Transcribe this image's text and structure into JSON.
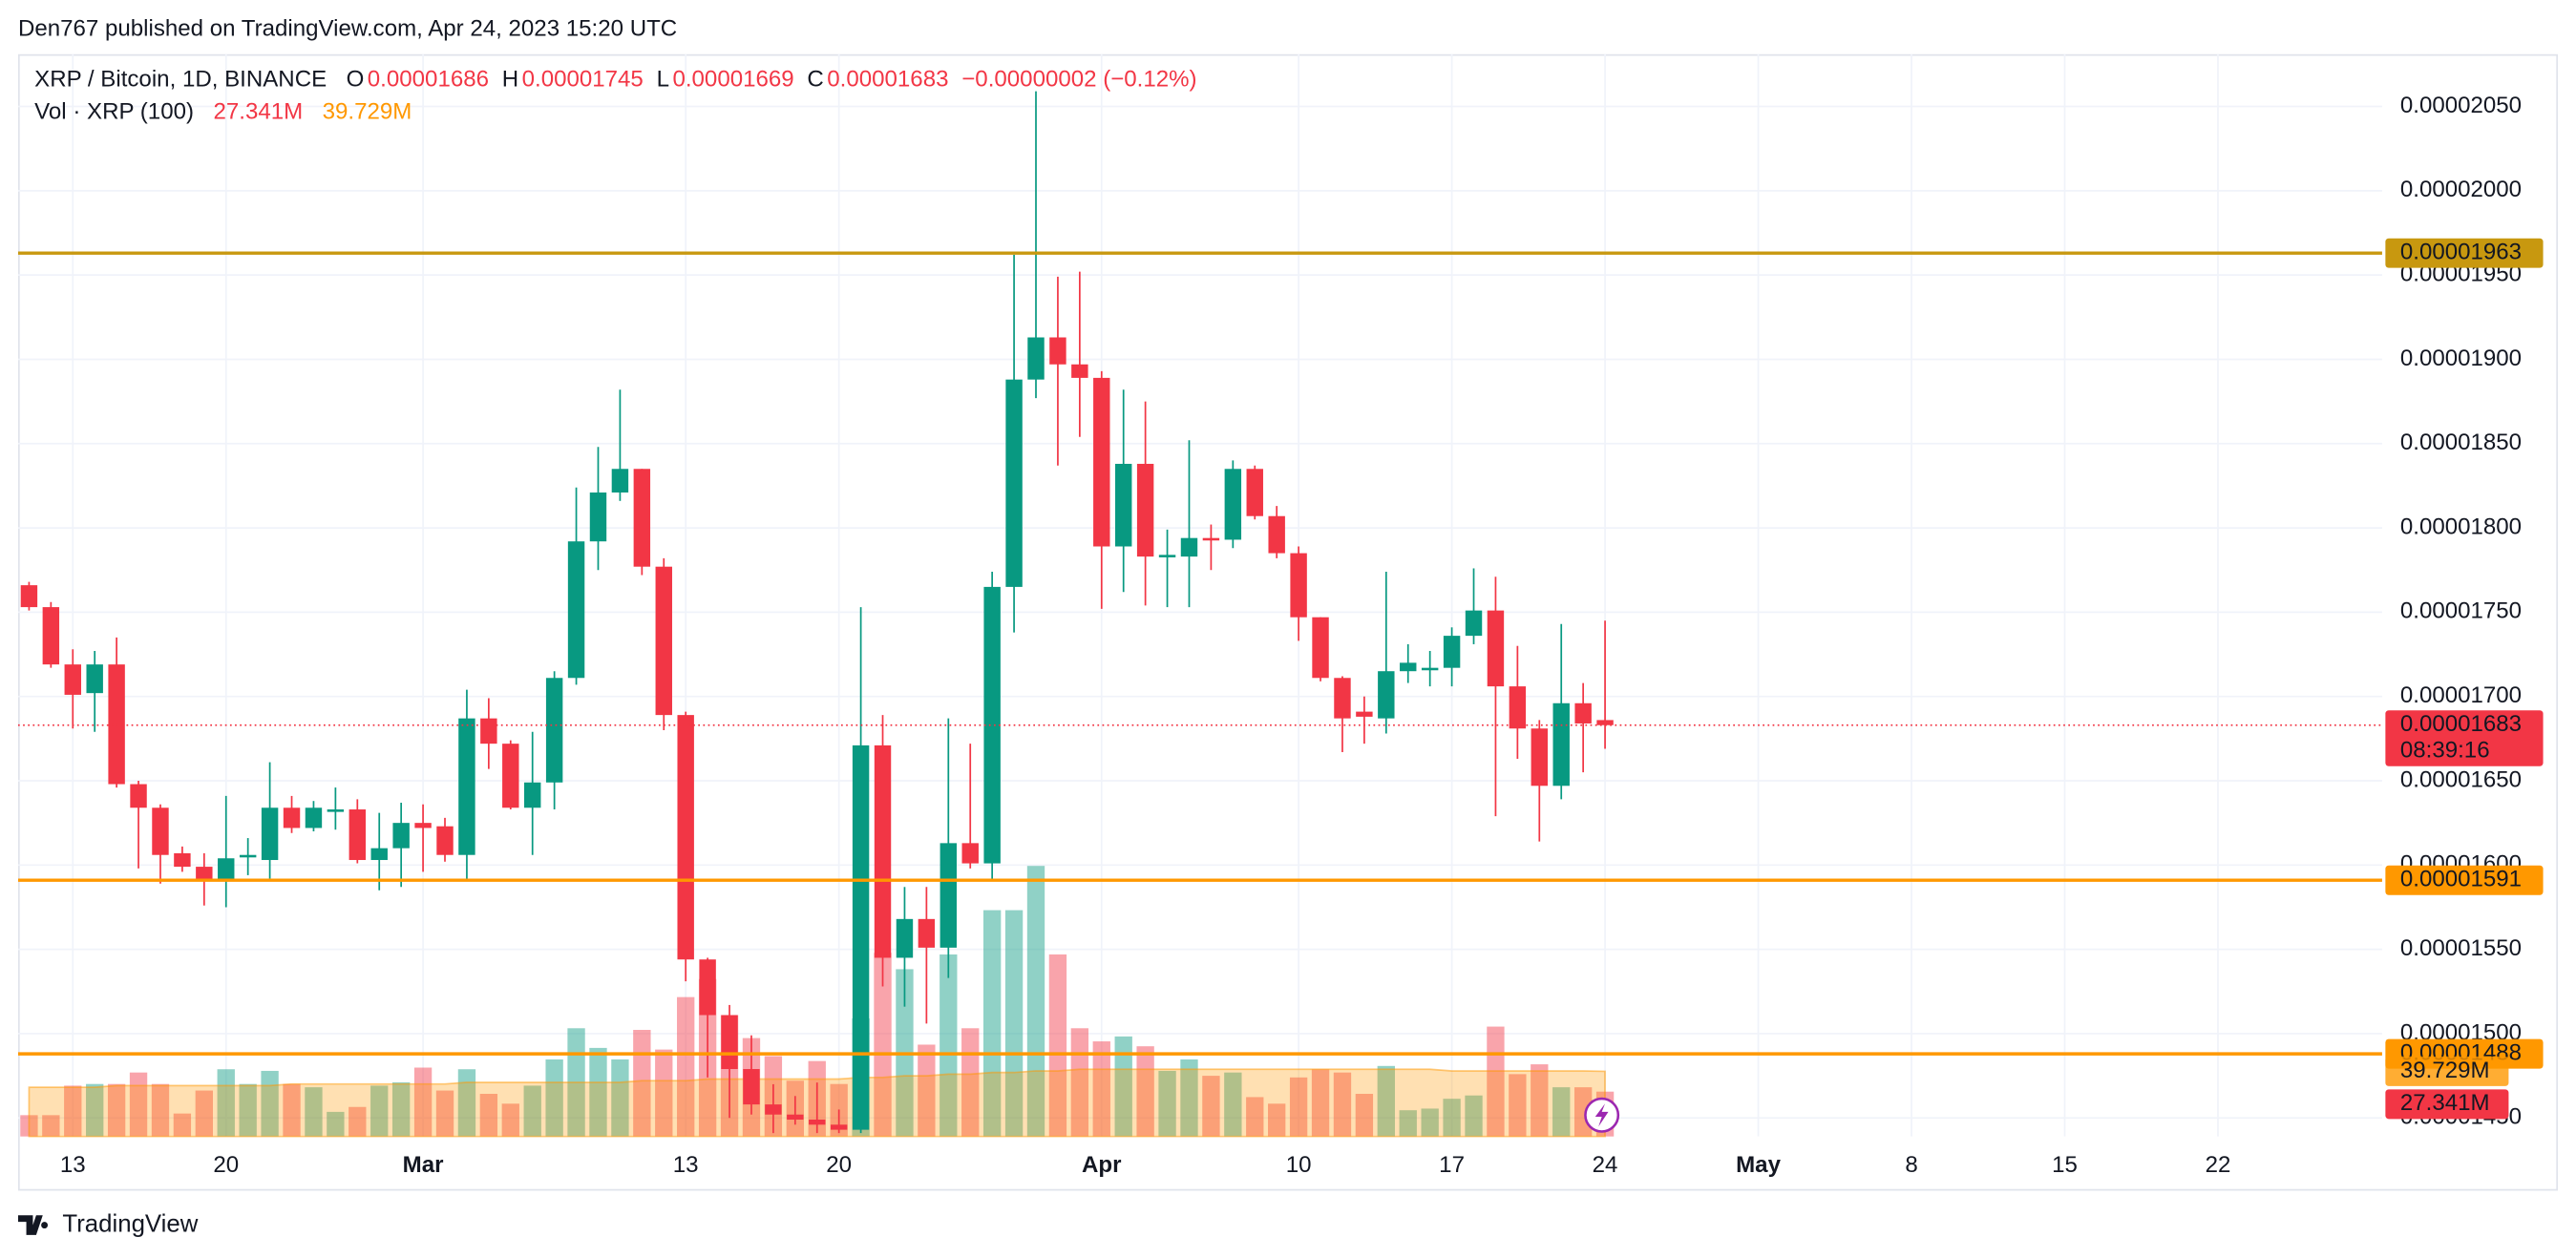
{
  "chart_data": {
    "type": "candlestick",
    "title": "Den767 published on TradingView.com, Apr 24, 2023 15:20 UTC",
    "brand": "TradingView",
    "ohlc_letters": [
      "O",
      "H",
      "L",
      "C"
    ],
    "change": "−0.00000002 (−0.12%)",
    "countdown": "08:39:16",
    "up_color": "#089981",
    "down_color": "#f23645",
    "grid": true,
    "categories": [
      null,
      null,
      "13",
      null,
      null,
      null,
      null,
      null,
      null,
      "20",
      null,
      null,
      null,
      null,
      null,
      null,
      null,
      null,
      "Mar",
      null,
      null,
      null,
      null,
      null,
      null,
      null,
      null,
      null,
      null,
      null,
      "13",
      null,
      null,
      null,
      null,
      null,
      null,
      "20",
      null,
      null,
      null,
      null,
      null,
      null,
      null,
      null,
      null,
      null,
      null,
      "Apr",
      null,
      null,
      null,
      null,
      null,
      null,
      null,
      null,
      "10",
      null,
      null,
      null,
      null,
      null,
      null,
      "17",
      null,
      null,
      null,
      null,
      null,
      null,
      "24",
      null,
      null,
      null,
      null,
      null,
      null,
      "May",
      null,
      null,
      null,
      null,
      null,
      null,
      "8",
      null,
      null,
      null,
      null,
      null,
      null,
      "15",
      null,
      null,
      null,
      null,
      null,
      null,
      "22",
      null,
      null,
      null,
      null,
      null,
      null,
      null
    ],
    "series": [
      {
        "name": "XRP / Bitcoin, 1D, BINANCE",
        "open": [
          1.766e-05,
          1.753e-05,
          1.719e-05,
          1.702e-05,
          1.719e-05,
          1.648e-05,
          1.634e-05,
          1.607e-05,
          1.599e-05,
          1.591e-05,
          1.605e-05,
          1.603e-05,
          1.634e-05,
          1.622e-05,
          1.632e-05,
          1.633e-05,
          1.603e-05,
          1.61e-05,
          1.625e-05,
          1.623e-05,
          1.606e-05,
          1.687e-05,
          1.672e-05,
          1.634e-05,
          1.649e-05,
          1.711e-05,
          1.792e-05,
          1.821e-05,
          1.835e-05,
          1.777e-05,
          1.689e-05,
          1.544e-05,
          1.511e-05,
          1.479e-05,
          1.458e-05,
          1.452e-05,
          1.449e-05,
          1.446e-05,
          1.443e-05,
          1.671e-05,
          1.545e-05,
          1.568e-05,
          1.551e-05,
          1.613e-05,
          1.601e-05,
          1.765e-05,
          1.888e-05,
          1.913e-05,
          1.897e-05,
          1.889e-05,
          1.789e-05,
          1.838e-05,
          1.783e-05,
          1.783e-05,
          1.794e-05,
          1.793e-05,
          1.835e-05,
          1.807e-05,
          1.785e-05,
          1.747e-05,
          1.711e-05,
          1.691e-05,
          1.687e-05,
          1.715e-05,
          1.716e-05,
          1.717e-05,
          1.736e-05,
          1.751e-05,
          1.706e-05,
          1.681e-05,
          1.647e-05,
          1.696e-05,
          1.686e-05,
          null,
          null,
          null,
          null,
          null,
          null,
          null,
          null,
          null,
          null,
          null,
          null,
          null,
          null,
          null,
          null,
          null,
          null,
          null,
          null,
          null,
          null,
          null,
          null,
          null,
          null,
          null,
          null,
          null,
          null,
          null,
          null,
          null,
          null,
          null
        ],
        "high": [
          1.768e-05,
          1.756e-05,
          1.728e-05,
          1.727e-05,
          1.735e-05,
          1.65e-05,
          1.636e-05,
          1.611e-05,
          1.607e-05,
          1.641e-05,
          1.616e-05,
          1.661e-05,
          1.641e-05,
          1.638e-05,
          1.646e-05,
          1.639e-05,
          1.631e-05,
          1.637e-05,
          1.636e-05,
          1.628e-05,
          1.704e-05,
          1.699e-05,
          1.674e-05,
          1.679e-05,
          1.715e-05,
          1.824e-05,
          1.848e-05,
          1.882e-05,
          1.835e-05,
          1.782e-05,
          1.691e-05,
          1.545e-05,
          1.517e-05,
          1.499e-05,
          1.47e-05,
          1.463e-05,
          1.471e-05,
          1.455e-05,
          1.753e-05,
          1.689e-05,
          1.587e-05,
          1.587e-05,
          1.687e-05,
          1.672e-05,
          1.774e-05,
          1.962e-05,
          2.059e-05,
          1.949e-05,
          1.952e-05,
          1.893e-05,
          1.882e-05,
          1.875e-05,
          1.799e-05,
          1.852e-05,
          1.802e-05,
          1.84e-05,
          1.837e-05,
          1.813e-05,
          1.789e-05,
          1.747e-05,
          1.712e-05,
          1.7e-05,
          1.774e-05,
          1.731e-05,
          1.727e-05,
          1.741e-05,
          1.776e-05,
          1.771e-05,
          1.73e-05,
          1.686e-05,
          1.743e-05,
          1.708e-05,
          1.745e-05,
          null,
          null,
          null,
          null,
          null,
          null,
          null,
          null,
          null,
          null,
          null,
          null,
          null,
          null,
          null,
          null,
          null,
          null,
          null,
          null,
          null,
          null,
          null,
          null,
          null,
          null,
          null,
          null,
          null,
          null,
          null,
          null,
          null,
          null,
          null
        ],
        "low": [
          1.751e-05,
          1.717e-05,
          1.681e-05,
          1.679e-05,
          1.646e-05,
          1.598e-05,
          1.589e-05,
          1.596e-05,
          1.576e-05,
          1.575e-05,
          1.594e-05,
          1.592e-05,
          1.619e-05,
          1.62e-05,
          1.621e-05,
          1.601e-05,
          1.585e-05,
          1.587e-05,
          1.596e-05,
          1.602e-05,
          1.592e-05,
          1.657e-05,
          1.633e-05,
          1.606e-05,
          1.633e-05,
          1.707e-05,
          1.775e-05,
          1.816e-05,
          1.772e-05,
          1.68e-05,
          1.531e-05,
          1.474e-05,
          1.45e-05,
          1.452e-05,
          1.441e-05,
          1.446e-05,
          1.441e-05,
          1.441e-05,
          1.441e-05,
          1.528e-05,
          1.516e-05,
          1.506e-05,
          1.533e-05,
          1.598e-05,
          1.592e-05,
          1.738e-05,
          1.877e-05,
          1.837e-05,
          1.854e-05,
          1.752e-05,
          1.762e-05,
          1.754e-05,
          1.753e-05,
          1.753e-05,
          1.775e-05,
          1.788e-05,
          1.805e-05,
          1.782e-05,
          1.733e-05,
          1.709e-05,
          1.667e-05,
          1.672e-05,
          1.678e-05,
          1.708e-05,
          1.706e-05,
          1.706e-05,
          1.731e-05,
          1.629e-05,
          1.663e-05,
          1.614e-05,
          1.639e-05,
          1.655e-05,
          1.669e-05,
          null,
          null,
          null,
          null,
          null,
          null,
          null,
          null,
          null,
          null,
          null,
          null,
          null,
          null,
          null,
          null,
          null,
          null,
          null,
          null,
          null,
          null,
          null,
          null,
          null,
          null,
          null,
          null,
          null,
          null,
          null,
          null,
          null,
          null,
          null
        ],
        "close": [
          1.753e-05,
          1.719e-05,
          1.701e-05,
          1.719e-05,
          1.648e-05,
          1.634e-05,
          1.606e-05,
          1.599e-05,
          1.591e-05,
          1.604e-05,
          1.606e-05,
          1.634e-05,
          1.622e-05,
          1.634e-05,
          1.633e-05,
          1.603e-05,
          1.61e-05,
          1.625e-05,
          1.622e-05,
          1.606e-05,
          1.687e-05,
          1.672e-05,
          1.634e-05,
          1.649e-05,
          1.711e-05,
          1.792e-05,
          1.821e-05,
          1.835e-05,
          1.777e-05,
          1.689e-05,
          1.544e-05,
          1.511e-05,
          1.479e-05,
          1.458e-05,
          1.452e-05,
          1.449e-05,
          1.446e-05,
          1.443e-05,
          1.671e-05,
          1.545e-05,
          1.568e-05,
          1.551e-05,
          1.613e-05,
          1.601e-05,
          1.765e-05,
          1.888e-05,
          1.913e-05,
          1.897e-05,
          1.889e-05,
          1.789e-05,
          1.838e-05,
          1.783e-05,
          1.784e-05,
          1.794e-05,
          1.793e-05,
          1.835e-05,
          1.807e-05,
          1.785e-05,
          1.747e-05,
          1.711e-05,
          1.687e-05,
          1.688e-05,
          1.715e-05,
          1.72e-05,
          1.717e-05,
          1.736e-05,
          1.751e-05,
          1.706e-05,
          1.681e-05,
          1.647e-05,
          1.696e-05,
          1.684e-05,
          1.683e-05,
          null,
          null,
          null,
          null,
          null,
          null,
          null,
          null,
          null,
          null,
          null,
          null,
          null,
          null,
          null,
          null,
          null,
          null,
          null,
          null,
          null,
          null,
          null,
          null,
          null,
          null,
          null,
          null,
          null,
          null,
          null,
          null,
          null,
          null,
          null
        ]
      }
    ],
    "volume": {
      "name": "Vol · XRP (100)",
      "last_label": "27.341M",
      "values": [
        13,
        13,
        31,
        32,
        32,
        39,
        32,
        14,
        28,
        41,
        32,
        40,
        32,
        30,
        15,
        18,
        31,
        33,
        42,
        28,
        41,
        26,
        20,
        31,
        47,
        66,
        54,
        47,
        65,
        53,
        85,
        96,
        74,
        60,
        49,
        34,
        46,
        32,
        72,
        112,
        102,
        56,
        111,
        66,
        138,
        138,
        165,
        111,
        66,
        58,
        61,
        55,
        40,
        47,
        37,
        39,
        24,
        20,
        36,
        41,
        39,
        26,
        43,
        16,
        17,
        23,
        25,
        67,
        38,
        44,
        30,
        30,
        27.341,
        null,
        null,
        null,
        null,
        null,
        null,
        null,
        null,
        null,
        null,
        null,
        null,
        null,
        null,
        null,
        null,
        null,
        null,
        null,
        null,
        null,
        null,
        null,
        null,
        null,
        null,
        null,
        null,
        null,
        null,
        null,
        null,
        null,
        null,
        null
      ]
    },
    "volume_ma": {
      "color": "#ff9800",
      "last_label": "39.729M",
      "values": [
        30,
        30,
        30,
        30,
        31,
        31,
        31,
        31,
        31,
        31,
        31,
        31,
        32,
        32,
        32,
        32,
        32,
        32,
        32,
        32,
        33,
        33,
        33,
        33,
        33,
        33,
        33,
        33,
        34,
        34,
        34,
        35,
        35,
        35,
        35,
        35,
        35,
        35,
        36,
        36,
        37,
        37,
        38,
        38,
        39,
        39,
        40,
        40,
        41,
        41,
        41,
        41,
        41,
        41,
        41,
        41,
        41,
        41,
        41,
        41,
        41,
        41,
        41,
        41,
        41,
        40,
        40,
        40,
        40,
        40,
        40,
        40,
        39.729,
        null,
        null,
        null,
        null,
        null,
        null,
        null,
        null,
        null,
        null,
        null,
        null,
        null,
        null,
        null,
        null,
        null,
        null,
        null,
        null,
        null,
        null,
        null,
        null,
        null,
        null,
        null,
        null,
        null,
        null,
        null,
        null,
        null,
        null,
        null
      ]
    },
    "levels": [
      {
        "value": 1.963e-05,
        "color": "#c8980f",
        "text_color": "#ffffff"
      },
      {
        "value": 1.591e-05,
        "color": "#ff9800",
        "text_color": "#131722"
      },
      {
        "value": 1.488e-05,
        "color": "#ff9800",
        "text_color": "#131722"
      }
    ],
    "ylim": [
      1.439e-05,
      2.081e-05
    ],
    "yticks": [
      {
        "value": 2.05e-05,
        "label": "0.00002050"
      },
      {
        "value": 2e-05,
        "label": "0.00002000"
      },
      {
        "value": 1.95e-05,
        "label": "0.00001950"
      },
      {
        "value": 1.9e-05,
        "label": "0.00001900"
      },
      {
        "value": 1.85e-05,
        "label": "0.00001850"
      },
      {
        "value": 1.8e-05,
        "label": "0.00001800"
      },
      {
        "value": 1.75e-05,
        "label": "0.00001750"
      },
      {
        "value": 1.7e-05,
        "label": "0.00001700"
      },
      {
        "value": 1.65e-05,
        "label": "0.00001650"
      },
      {
        "value": 1.6e-05,
        "label": "0.00001600"
      },
      {
        "value": 1.55e-05,
        "label": "0.00001550"
      },
      {
        "value": 1.5e-05,
        "label": "0.00001500"
      },
      {
        "value": 1.45e-05,
        "label": "0.00001450"
      }
    ]
  }
}
